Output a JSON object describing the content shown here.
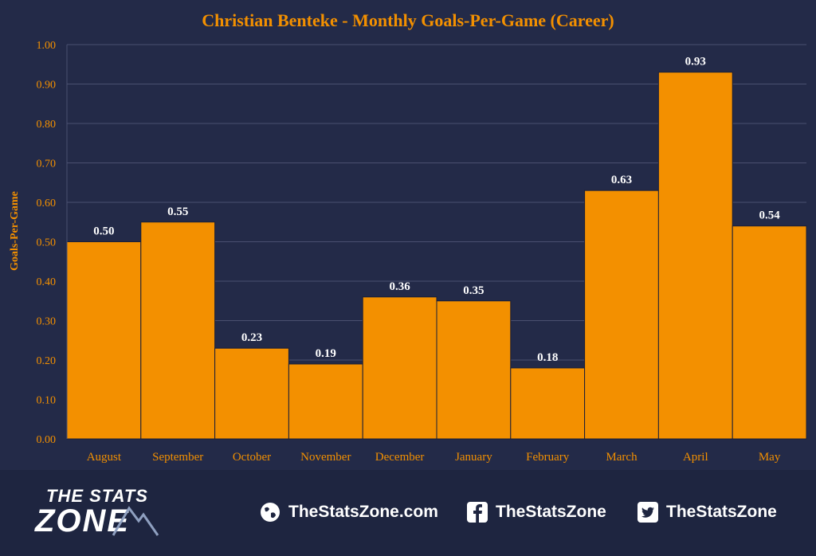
{
  "chart_data": {
    "type": "bar",
    "title": "Christian Benteke - Monthly Goals-Per-Game (Career)",
    "xlabel": "",
    "ylabel": "Goals-Per-Game",
    "categories": [
      "August",
      "September",
      "October",
      "November",
      "December",
      "January",
      "February",
      "March",
      "April",
      "May"
    ],
    "values": [
      0.5,
      0.55,
      0.23,
      0.19,
      0.36,
      0.35,
      0.18,
      0.63,
      0.93,
      0.54
    ],
    "value_labels": [
      "0.50",
      "0.55",
      "0.23",
      "0.19",
      "0.36",
      "0.35",
      "0.18",
      "0.63",
      "0.93",
      "0.54"
    ],
    "ylim": [
      0,
      1.0
    ],
    "yticks": [
      "0.00",
      "0.10",
      "0.20",
      "0.30",
      "0.40",
      "0.50",
      "0.60",
      "0.70",
      "0.80",
      "0.90",
      "1.00"
    ],
    "grid": true,
    "legend": "none"
  },
  "colors": {
    "background": "#232a48",
    "footer": "#1e2540",
    "bar": "#f39000",
    "bar_edge": "#1a1f38",
    "text_orange": "#f39000",
    "grid": "#4a5070",
    "label_white": "#ffffff"
  },
  "footer": {
    "logo_top": "THE STATS",
    "logo_bottom": "ZONE",
    "website": "TheStatsZone.com",
    "facebook": "TheStatsZone",
    "twitter": "TheStatsZone",
    "icons": [
      "globe-icon",
      "facebook-icon",
      "twitter-icon"
    ]
  }
}
